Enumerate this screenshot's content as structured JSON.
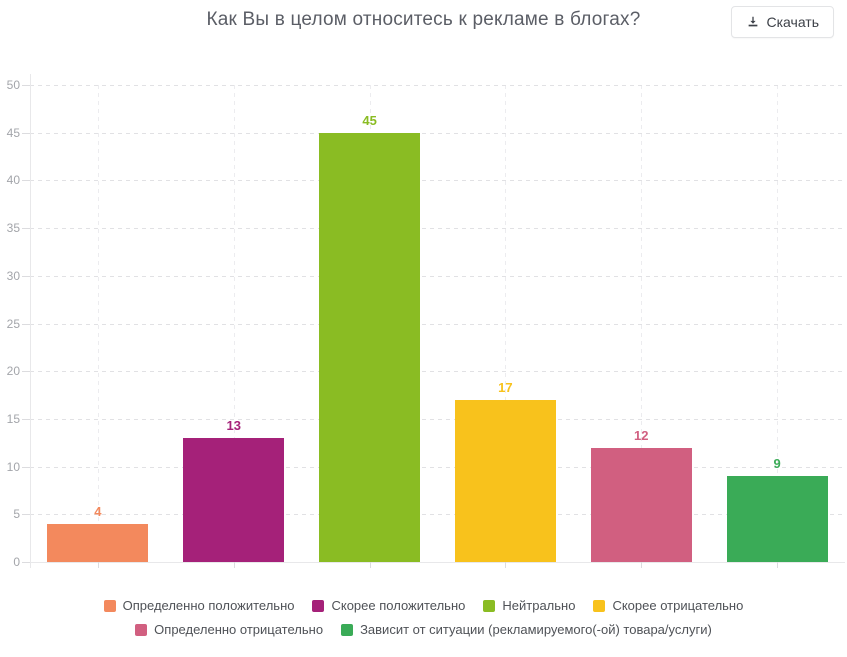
{
  "header": {
    "title": "Как Вы в целом относитесь к рекламе в блогах?",
    "download_button": {
      "label": "Скачать",
      "icon": "download-icon"
    }
  },
  "chart_data": {
    "type": "bar",
    "title": "Как Вы в целом относитесь к рекламе в блогах?",
    "categories": [
      "Определенно положительно",
      "Скорее положительно",
      "Нейтрально",
      "Скорее отрицательно",
      "Определенно отрицательно",
      "Зависит от ситуации (рекламируемого(-ой) товара/услуги)"
    ],
    "values": [
      4,
      13,
      45,
      17,
      12,
      9
    ],
    "colors": [
      "#f3895d",
      "#a52179",
      "#8abc23",
      "#f8c21c",
      "#d15f80",
      "#3aab57"
    ],
    "xlabel": "",
    "ylabel": "",
    "ylim": [
      0,
      50
    ],
    "ytick_step": 5,
    "grid": {
      "horizontal": "dashed",
      "vertical": "dashed-at-category-centers"
    },
    "legend_position": "bottom",
    "legend_rows": [
      [
        0,
        1,
        2,
        3
      ],
      [
        4,
        5
      ]
    ],
    "value_labels": "above bars, colored as bar"
  }
}
